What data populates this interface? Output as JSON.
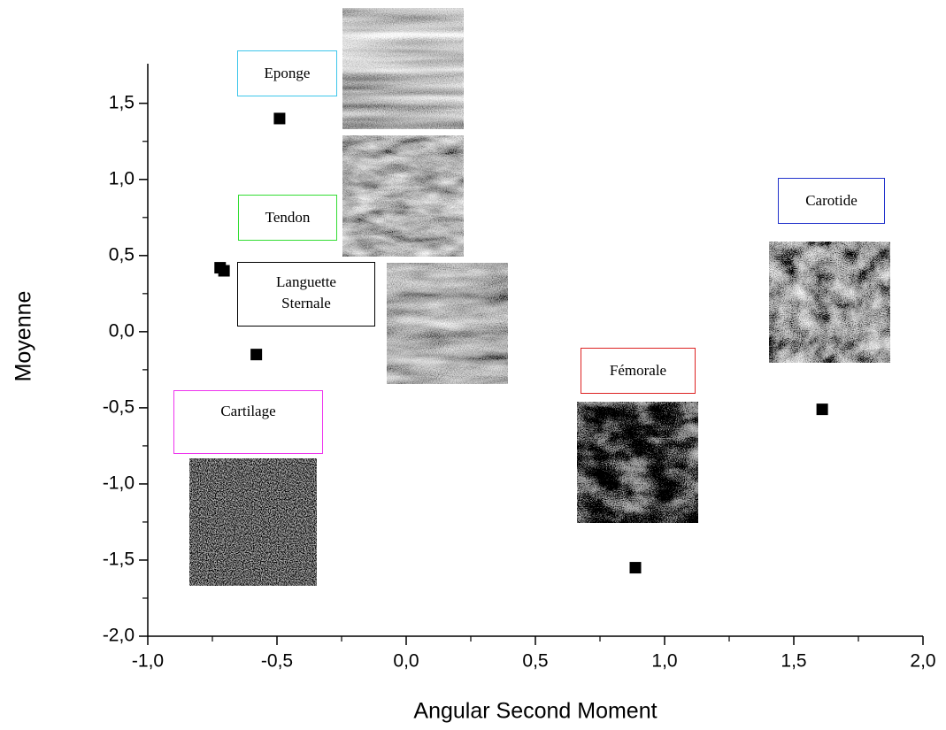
{
  "chart_data": {
    "type": "scatter",
    "x_label": "Angular Second Moment",
    "y_label": "Moyenne",
    "x": [
      -0.49,
      -0.72,
      -0.705,
      -0.58,
      0.887,
      1.61
    ],
    "values": [
      1.4,
      0.42,
      0.4,
      -0.15,
      -1.55,
      -0.51
    ],
    "color": "#000000",
    "xlim": [
      -1,
      2
    ],
    "ylim": [
      -2,
      1.76
    ],
    "xticks": [
      {
        "value": -1,
        "label": "-1,0"
      },
      {
        "value": -0.5,
        "label": "-0,5"
      },
      {
        "value": 0,
        "label": "0,0"
      },
      {
        "value": 0.5,
        "label": "0,5"
      },
      {
        "value": 1,
        "label": "1,0"
      },
      {
        "value": 1.5,
        "label": "1,5"
      },
      {
        "value": 2,
        "label": "2,0"
      }
    ],
    "yticks": [
      {
        "value": -2,
        "label": "-2,0"
      },
      {
        "value": -1.5,
        "label": "-1,5"
      },
      {
        "value": -1,
        "label": "-1,0"
      },
      {
        "value": -0.5,
        "label": "-0,5"
      },
      {
        "value": 0,
        "label": "0,0"
      },
      {
        "value": 0.5,
        "label": "0,5"
      },
      {
        "value": 1,
        "label": "1,0"
      },
      {
        "value": 1.5,
        "label": "1,5"
      }
    ],
    "xminor_ticks": [
      -0.75,
      -0.25,
      0.25,
      0.75,
      1.25,
      1.75
    ],
    "yminor_ticks": [
      -1.75,
      -1.25,
      -0.75,
      -0.25,
      0.25,
      0.75,
      1.25
    ],
    "annotations": [
      {
        "text": "Eponge",
        "color": "#3ec6ea"
      },
      {
        "text": "Tendon",
        "color": "#33dd33"
      },
      {
        "text": "Languette Sternale",
        "color": "#000000"
      },
      {
        "text": "Cartilage",
        "color": "#ee33ee"
      },
      {
        "text": "Fémorale",
        "color": "#dd2222"
      },
      {
        "text": "Carotide",
        "color": "#2233cc"
      }
    ]
  }
}
